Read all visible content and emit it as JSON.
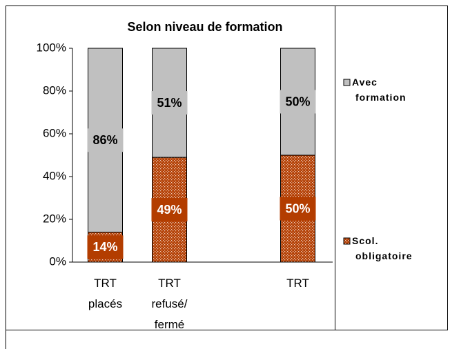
{
  "chart_data": {
    "type": "bar",
    "stacked": true,
    "title": "Selon niveau de formation",
    "categories": [
      "TRT placés",
      "TRT refusé/ fermé",
      null,
      "TRT"
    ],
    "series": [
      {
        "name": "Scol. obligatoire",
        "color": "#b33d00",
        "values": [
          14,
          49,
          null,
          50
        ],
        "value_labels": [
          "14%",
          "49%",
          null,
          "50%"
        ]
      },
      {
        "name": "Avec formation",
        "color": "#c0c0c0",
        "values": [
          86,
          51,
          null,
          50
        ],
        "value_labels": [
          "86%",
          "51%",
          null,
          "50%"
        ]
      }
    ],
    "ylim": [
      0,
      100
    ],
    "yticks": [
      {
        "value": 0,
        "label": "0%"
      },
      {
        "value": 20,
        "label": "20%"
      },
      {
        "value": 40,
        "label": "40%"
      },
      {
        "value": 60,
        "label": "60%"
      },
      {
        "value": 80,
        "label": "80%"
      },
      {
        "value": 100,
        "label": "100%"
      }
    ],
    "legend": "right"
  }
}
